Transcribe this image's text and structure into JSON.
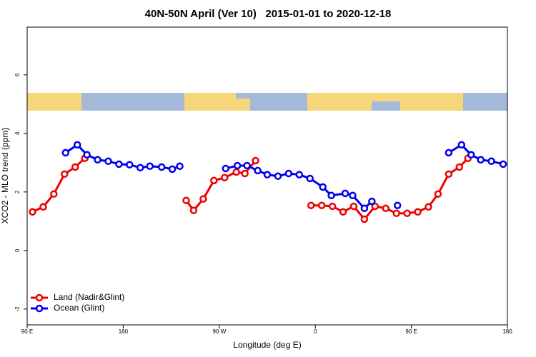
{
  "chart_data": {
    "type": "line",
    "title": "40N-50N April (Ver 10)   2015-01-01 to 2020-12-18",
    "x_label": "Longitude (deg E)",
    "y_label": "XCO2 - MLO trend (ppm)",
    "xlim": [
      90,
      540
    ],
    "xticks": [
      {
        "value": 90,
        "label": "90 E"
      },
      180,
      {
        "value": 270,
        "label": "90 W"
      },
      {
        "value": 360,
        "label": "0"
      },
      {
        "value": 450,
        "label": "90 E"
      },
      {
        "value": 540,
        "label": "180"
      }
    ],
    "ylim": [
      -2.54,
      7.63
    ],
    "yticks": [
      -2,
      0,
      2,
      4,
      6
    ],
    "legend": "bottom left",
    "series": [
      {
        "name": "Land (Nadir&Glint)",
        "color": "#ee0000",
        "x": [
          95,
          105,
          115,
          125,
          135,
          144,
          200,
          239,
          246,
          255,
          265,
          275,
          286,
          294,
          304,
          340,
          356,
          366,
          376,
          386,
          396,
          406,
          416,
          426,
          436,
          446,
          456,
          466,
          475,
          485,
          495,
          503
        ],
        "values": [
          1.32,
          1.49,
          1.93,
          2.61,
          2.85,
          3.15,
          null,
          1.71,
          1.37,
          1.76,
          2.39,
          2.49,
          2.68,
          2.63,
          3.07,
          null,
          1.54,
          1.54,
          1.51,
          1.32,
          1.51,
          1.07,
          1.51,
          1.44,
          1.27,
          1.27,
          1.32,
          1.49,
          1.93,
          2.61,
          2.85,
          3.15
        ]
      },
      {
        "name": "Ocean (Glint)",
        "color": "#0000ee",
        "x": [
          126,
          137,
          146,
          156,
          166,
          176,
          186,
          196,
          205,
          216,
          226,
          233,
          250,
          276,
          287,
          296,
          306,
          315,
          325,
          335,
          345,
          355,
          367,
          375,
          388,
          395,
          406,
          413,
          420,
          437,
          450,
          485,
          497,
          506,
          515,
          525,
          536
        ],
        "values": [
          3.34,
          3.61,
          3.27,
          3.1,
          3.05,
          2.95,
          2.93,
          2.83,
          2.88,
          2.85,
          2.78,
          2.88,
          null,
          2.8,
          2.9,
          2.9,
          2.73,
          2.59,
          2.54,
          2.63,
          2.59,
          2.46,
          2.17,
          1.88,
          1.95,
          1.88,
          1.44,
          1.68,
          null,
          1.54,
          null,
          3.34,
          3.61,
          3.27,
          3.1,
          3.05,
          2.95
        ]
      }
    ]
  }
}
